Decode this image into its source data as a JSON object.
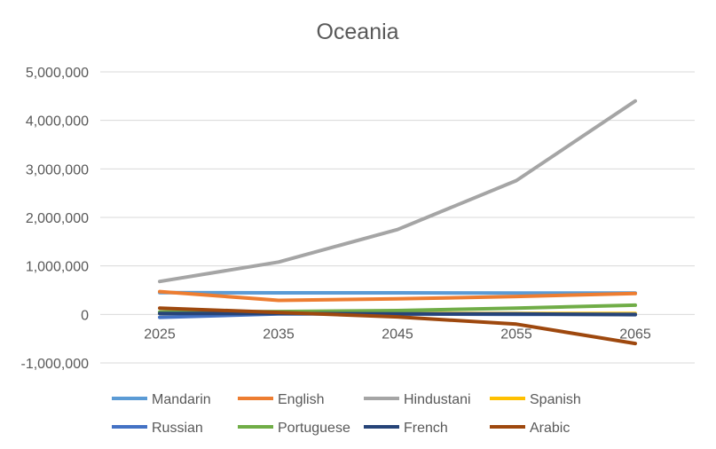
{
  "chart_data": {
    "type": "line",
    "title": "Oceania",
    "xlabel": "",
    "ylabel": "",
    "categories": [
      "2025",
      "2035",
      "2045",
      "2055",
      "2065"
    ],
    "ylim": [
      -1000000,
      5000000
    ],
    "yticks": [
      -1000000,
      0,
      1000000,
      2000000,
      3000000,
      4000000,
      5000000
    ],
    "ytick_labels": [
      "-1,000,000",
      "0",
      "1,000,000",
      "2,000,000",
      "3,000,000",
      "4,000,000",
      "5,000,000"
    ],
    "grid": true,
    "legend_position": "bottom",
    "series": [
      {
        "name": "Mandarin",
        "color": "#5b9bd5",
        "values": [
          450000,
          445000,
          445000,
          440000,
          440000
        ]
      },
      {
        "name": "English",
        "color": "#ed7d31",
        "values": [
          470000,
          290000,
          320000,
          370000,
          430000
        ]
      },
      {
        "name": "Hindustani",
        "color": "#a5a5a5",
        "values": [
          680000,
          1080000,
          1750000,
          2760000,
          4400000
        ]
      },
      {
        "name": "Spanish",
        "color": "#ffc000",
        "values": [
          20000,
          20000,
          20000,
          20000,
          20000
        ]
      },
      {
        "name": "Russian",
        "color": "#4472c4",
        "values": [
          -60000,
          10000,
          10000,
          0,
          0
        ]
      },
      {
        "name": "Portuguese",
        "color": "#70ad47",
        "values": [
          50000,
          60000,
          80000,
          130000,
          190000
        ]
      },
      {
        "name": "French",
        "color": "#264478",
        "values": [
          20000,
          20000,
          10000,
          10000,
          -5000
        ]
      },
      {
        "name": "Arabic",
        "color": "#9e480e",
        "values": [
          130000,
          40000,
          -50000,
          -200000,
          -600000
        ]
      }
    ]
  }
}
